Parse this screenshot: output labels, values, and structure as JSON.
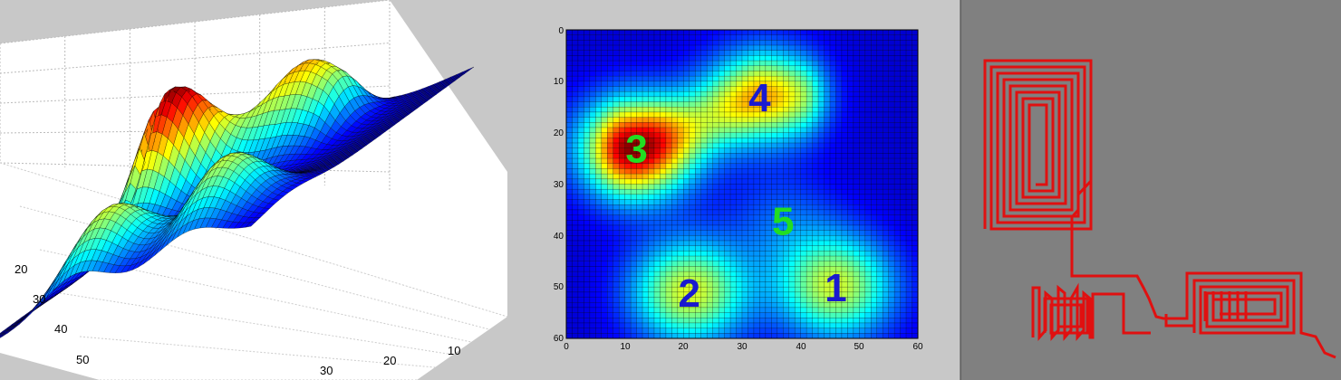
{
  "panels": {
    "surface": {
      "y_ticks": [
        "20",
        "30",
        "40",
        "50"
      ],
      "x_ticks": [
        "30",
        "20",
        "10"
      ]
    },
    "heatmap": {
      "x_ticks": [
        "0",
        "10",
        "20",
        "30",
        "40",
        "50",
        "60"
      ],
      "y_ticks": [
        "0",
        "10",
        "20",
        "30",
        "40",
        "50",
        "60"
      ],
      "peaks": [
        {
          "label": "1",
          "x": 46,
          "y": 50,
          "color": "#1a1ad0"
        },
        {
          "label": "2",
          "x": 21,
          "y": 51,
          "color": "#1a1ad0"
        },
        {
          "label": "3",
          "x": 12,
          "y": 23,
          "color": "#22dd22"
        },
        {
          "label": "4",
          "x": 33,
          "y": 13,
          "color": "#1a1ad0"
        },
        {
          "label": "5",
          "x": 37,
          "y": 37,
          "color": "#22dd22"
        }
      ]
    },
    "path": {
      "background": "#808080",
      "line_color": "#e01010"
    }
  },
  "chart_data": [
    {
      "type": "surface",
      "title": "",
      "grid_size": 60,
      "colormap": "jet",
      "y_ticks": [
        20,
        30,
        40,
        50
      ],
      "x_ticks": [
        30,
        20,
        10
      ]
    },
    {
      "type": "heatmap",
      "title": "",
      "xlim": [
        0,
        60
      ],
      "ylim": [
        60,
        0
      ],
      "grid": true,
      "colormap": "jet",
      "peaks": [
        {
          "label": "1",
          "x": 46,
          "y": 50,
          "amp": 0.72
        },
        {
          "label": "2",
          "x": 21,
          "y": 51,
          "amp": 0.75
        },
        {
          "label": "3",
          "x": 12,
          "y": 23,
          "amp": 1.0
        },
        {
          "label": "4",
          "x": 33,
          "y": 13,
          "amp": 0.58
        },
        {
          "label": "5",
          "x": 37,
          "y": 37,
          "amp": 0.18
        }
      ]
    }
  ]
}
